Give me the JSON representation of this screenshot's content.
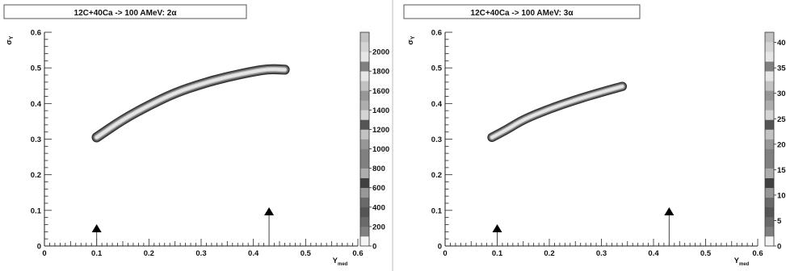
{
  "chart_data": [
    {
      "type": "heatmap",
      "title": "12C+40Ca -> 100 AMeV: 2α",
      "ylabel": "σ_Y",
      "xlabel": "Y_med",
      "xlim": [
        0,
        0.6
      ],
      "ylim": [
        0,
        0.6
      ],
      "x_ticks": [
        "0",
        "0.1",
        "0.2",
        "0.3",
        "0.4",
        "0.5",
        "0.6"
      ],
      "y_ticks": [
        "0",
        "0.1",
        "0.2",
        "0.3",
        "0.4",
        "0.5",
        "0.6"
      ],
      "zlim": [
        0,
        2200
      ],
      "z_ticks": [
        "0",
        "200",
        "400",
        "600",
        "800",
        "1000",
        "1200",
        "1400",
        "1600",
        "1800",
        "2000"
      ],
      "band": {
        "centerline": [
          [
            0.1,
            0.305
          ],
          [
            0.15,
            0.355
          ],
          [
            0.2,
            0.395
          ],
          [
            0.25,
            0.43
          ],
          [
            0.3,
            0.455
          ],
          [
            0.35,
            0.475
          ],
          [
            0.4,
            0.49
          ],
          [
            0.43,
            0.497
          ],
          [
            0.46,
            0.495
          ]
        ],
        "half_width": 0.014
      },
      "arrows_x": [
        0.1,
        0.43
      ]
    },
    {
      "type": "heatmap",
      "title": "12C+40Ca -> 100 AMeV: 3α",
      "ylabel": "σ_Y",
      "xlabel": "Y_med",
      "xlim": [
        0,
        0.6
      ],
      "ylim": [
        0,
        0.6
      ],
      "x_ticks": [
        "0",
        "0.1",
        "0.2",
        "0.3",
        "0.4",
        "0.5",
        "0.6"
      ],
      "y_ticks": [
        "0",
        "0.1",
        "0.2",
        "0.3",
        "0.4",
        "0.5",
        "0.6"
      ],
      "zlim": [
        0,
        42
      ],
      "z_ticks": [
        "0",
        "5",
        "10",
        "15",
        "20",
        "25",
        "30",
        "35",
        "40"
      ],
      "band": {
        "centerline": [
          [
            0.09,
            0.305
          ],
          [
            0.12,
            0.328
          ],
          [
            0.15,
            0.355
          ],
          [
            0.2,
            0.385
          ],
          [
            0.25,
            0.41
          ],
          [
            0.3,
            0.432
          ],
          [
            0.34,
            0.448
          ]
        ],
        "half_width": 0.013
      },
      "arrows_x": [
        0.1,
        0.43
      ]
    }
  ],
  "colors": {
    "palette_light_to_dark": [
      "#f4f4f4",
      "#e6e6e6",
      "#d4d4d4",
      "#c2c2c2",
      "#adadad",
      "#979797",
      "#808080",
      "#6a6a6a",
      "#555555",
      "#404040",
      "#2c2c2c"
    ]
  }
}
